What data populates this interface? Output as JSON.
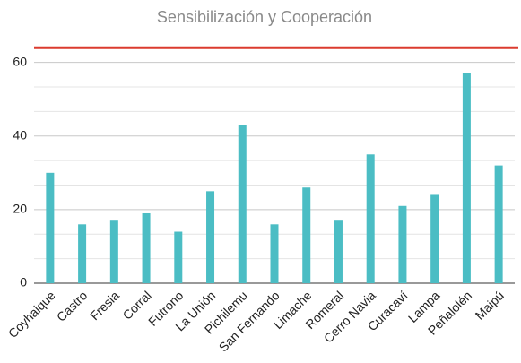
{
  "chart_data": {
    "type": "bar",
    "title": "Sensibilización y Cooperación",
    "categories": [
      "Coyhaique",
      "Castro",
      "Fresia",
      "Corral",
      "Futrono",
      "La Unión",
      "Pichilemu",
      "San Fernando",
      "Limache",
      "Romeral",
      "Cerro Navia",
      "Curacaví",
      "Lampa",
      "Peñalolén",
      "Maipú"
    ],
    "values": [
      30,
      16,
      17,
      19,
      14,
      25,
      43,
      16,
      26,
      17,
      35,
      21,
      24,
      57,
      32
    ],
    "color": "#4bbdc4",
    "ylim": [
      0,
      66
    ],
    "yticks": [
      0,
      20,
      40,
      60
    ],
    "grid": true,
    "reference_line": {
      "value": 64,
      "color": "#db3b2f"
    }
  }
}
